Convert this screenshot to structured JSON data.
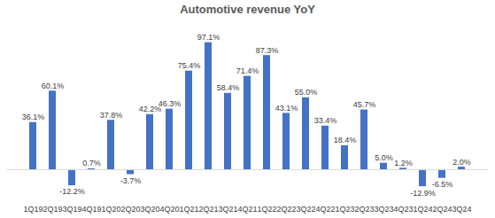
{
  "chart_data": {
    "type": "bar",
    "title": "Automotive revenue YoY",
    "categories": [
      "1Q19",
      "2Q19",
      "3Q19",
      "4Q19",
      "1Q20",
      "2Q20",
      "3Q20",
      "4Q20",
      "1Q21",
      "2Q21",
      "3Q21",
      "4Q21",
      "1Q22",
      "2Q22",
      "3Q22",
      "4Q22",
      "1Q23",
      "2Q23",
      "3Q23",
      "4Q23",
      "1Q24",
      "2Q24",
      "3Q24"
    ],
    "values": [
      36.1,
      60.1,
      -12.2,
      0.7,
      37.8,
      -3.7,
      42.2,
      46.3,
      75.4,
      97.1,
      58.4,
      71.4,
      87.3,
      43.1,
      55.0,
      33.4,
      18.4,
      45.7,
      5.0,
      1.2,
      -12.9,
      -6.5,
      2.0
    ],
    "value_labels": [
      "36.1%",
      "60.1%",
      "-12.2%",
      "0.7%",
      "37.8%",
      "-3.7%",
      "42.2%",
      "46.3%",
      "75.4%",
      "97.1%",
      "58.4%",
      "71.4%",
      "87.3%",
      "43.1%",
      "55.0%",
      "33.4%",
      "18.4%",
      "45.7%",
      "5.0%",
      "1.2%",
      "-12.9%",
      "-6.5%",
      "2.0%"
    ],
    "color": "#4472c4",
    "ylim": [
      -25,
      105
    ],
    "grid": false,
    "data_labels": true,
    "tick_labels": "x"
  }
}
